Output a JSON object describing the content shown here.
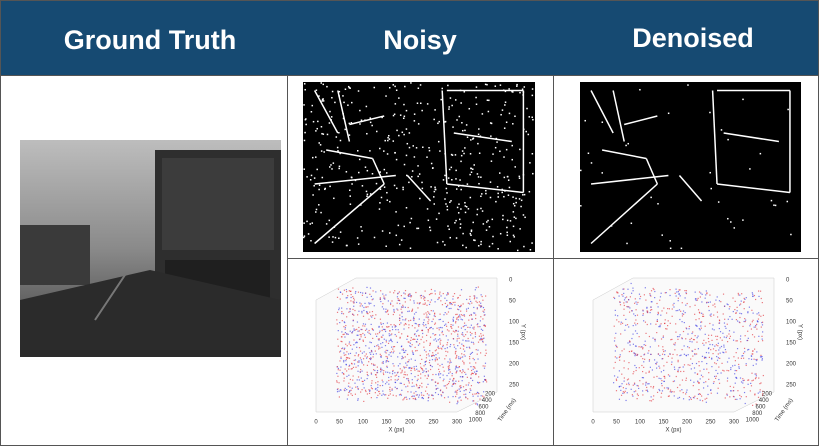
{
  "header": {
    "columns": [
      "Ground Truth",
      "Noisy",
      "Denoised"
    ]
  },
  "plots": [
    {
      "x_ticks": [
        0,
        50,
        100,
        150,
        200,
        250,
        300
      ],
      "x_label": "X (px)",
      "y_ticks": [
        0,
        50,
        100,
        150,
        200,
        250
      ],
      "y_label": "Y (px)",
      "time_ticks": [
        200,
        400,
        600,
        800,
        1000
      ],
      "time_label": "Time (ms)"
    },
    {
      "x_ticks": [
        0,
        50,
        100,
        150,
        200,
        250,
        300
      ],
      "x_label": "X (px)",
      "y_ticks": [
        0,
        50,
        100,
        150,
        200,
        250
      ],
      "y_label": "Y (px)",
      "time_ticks": [
        200,
        400,
        600,
        800,
        1000
      ],
      "time_label": "Time (ms)"
    }
  ]
}
